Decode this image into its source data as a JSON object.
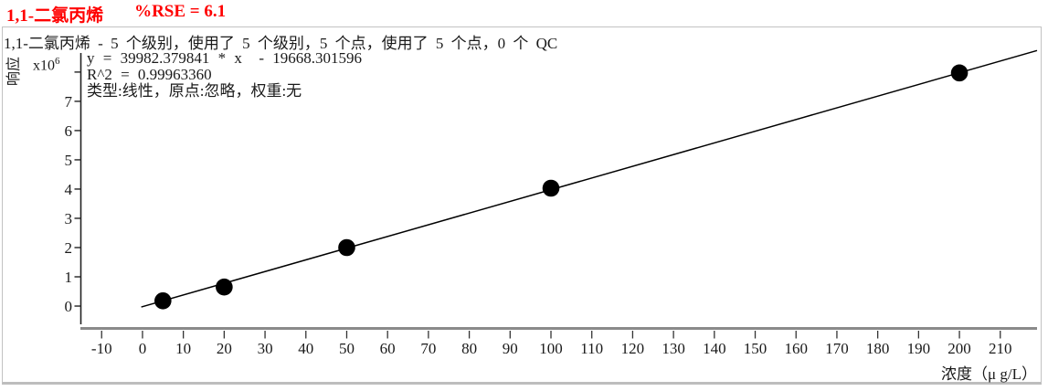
{
  "header": {
    "compound": "1,1-二氯丙烯",
    "rse_label": "%RSE = 6.1",
    "title_color": "#ff0000"
  },
  "panel": {
    "subtitle": "1,1-二氯丙烯 - 5 个级别，使用了 5 个级别，5 个点，使用了 5 个点，0 个 QC",
    "stats": {
      "equation": "y = 39982.379841 * x  - 19668.301596",
      "r_squared": "R^2 = 0.99963360",
      "fit_info": "类型:线性，原点:忽略，权重:无"
    }
  },
  "chart_data": {
    "type": "scatter",
    "xlabel": "浓度（μ g/L）",
    "ylabel": "响应",
    "y_scale_base": "x10",
    "y_scale_exp": "6",
    "x": [
      5,
      20,
      50,
      100,
      200
    ],
    "y_millions": [
      0.18,
      0.65,
      2.0,
      4.03,
      7.97
    ],
    "fit": {
      "slope": 39982.379841,
      "intercept": -19668.301596,
      "r2": 0.9996336,
      "type": "线性",
      "origin": "忽略",
      "weight": "无"
    },
    "x_ticks": [
      -10,
      0,
      10,
      20,
      30,
      40,
      50,
      60,
      70,
      80,
      90,
      100,
      110,
      120,
      130,
      140,
      150,
      160,
      170,
      180,
      190,
      200,
      210
    ],
    "y_ticks_labeled": [
      0,
      1,
      2,
      3,
      4,
      5,
      6,
      7
    ],
    "y_ticks_unlabeled": [
      8
    ],
    "xlim": [
      -15.2,
      219
    ],
    "ylim_millions": [
      -0.78,
      8.59
    ],
    "grid": false,
    "legend": false,
    "marker_color": "#000000",
    "line_color": "#000000",
    "axis_color": "#8a8a8a"
  }
}
